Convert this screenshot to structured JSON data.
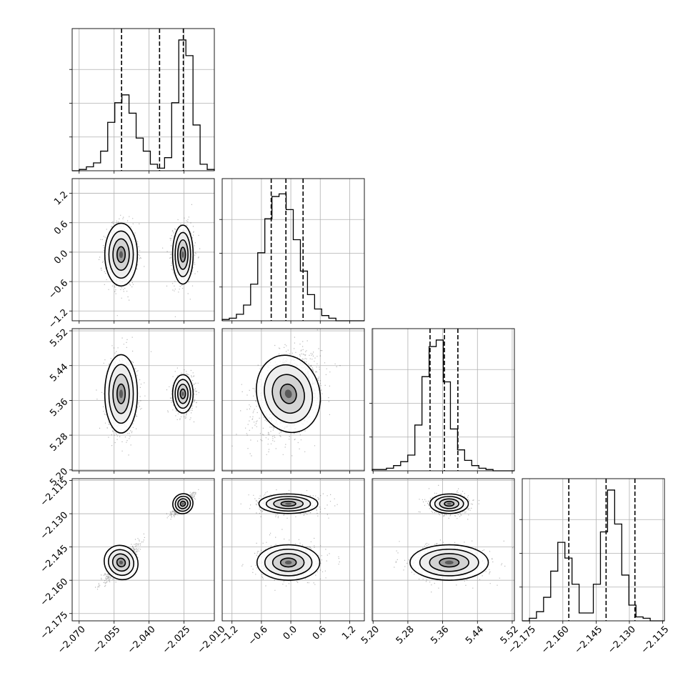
{
  "chart_data": {
    "type": "corner",
    "parameters": [
      {
        "range": [
          -2.073,
          -2.012
        ],
        "ticks": [
          -2.07,
          -2.055,
          -2.04,
          -2.025,
          -2.01
        ],
        "tick_labels": [
          "−2.070",
          "−2.055",
          "−2.040",
          "−2.025",
          "−2.010"
        ],
        "quantiles": [
          -2.0518,
          -2.0355,
          -2.0253
        ]
      },
      {
        "range": [
          -1.4,
          1.5
        ],
        "ticks": [
          -1.2,
          -0.6,
          0.0,
          0.6,
          1.2
        ],
        "tick_labels": [
          "−1.2",
          "−0.6",
          "0.0",
          "0.6",
          "1.2"
        ],
        "quantiles": [
          -0.4,
          -0.1,
          0.25
        ]
      },
      {
        "range": [
          5.198,
          5.525
        ],
        "ticks": [
          5.2,
          5.28,
          5.36,
          5.44,
          5.52
        ],
        "tick_labels": [
          "5.20",
          "5.28",
          "5.36",
          "5.44",
          "5.52"
        ],
        "quantiles": [
          5.331,
          5.364,
          5.395
        ]
      },
      {
        "range": [
          -2.1783,
          -2.1142
        ],
        "ticks": [
          -2.175,
          -2.16,
          -2.145,
          -2.13,
          -2.115
        ],
        "tick_labels": [
          "−2.175",
          "−2.160",
          "−2.145",
          "−2.130",
          "−2.115"
        ],
        "quantiles": [
          -2.1573,
          -2.1405,
          -2.1275
        ]
      }
    ],
    "histograms": [
      [
        0.0,
        0.01,
        0.03,
        0.06,
        0.15,
        0.37,
        0.52,
        0.58,
        0.44,
        0.25,
        0.15,
        0.05,
        0.02,
        0.1,
        0.52,
        1.0,
        0.88,
        0.35,
        0.05,
        0.01
      ],
      [
        0.01,
        0.02,
        0.05,
        0.12,
        0.28,
        0.52,
        0.78,
        0.95,
        0.97,
        0.85,
        0.62,
        0.38,
        0.2,
        0.09,
        0.04,
        0.02,
        0.0,
        0.0,
        0.0,
        0.0
      ],
      [
        0.01,
        0.01,
        0.02,
        0.04,
        0.07,
        0.12,
        0.35,
        0.72,
        0.95,
        1.0,
        0.68,
        0.32,
        0.16,
        0.08,
        0.04,
        0.02,
        0.01,
        0.0,
        0.0,
        0.0
      ],
      [
        0.0,
        0.02,
        0.07,
        0.18,
        0.38,
        0.6,
        0.48,
        0.28,
        0.06,
        0.06,
        0.28,
        0.68,
        1.0,
        0.74,
        0.35,
        0.12,
        0.03,
        0.02,
        0.0,
        0.0
      ]
    ],
    "modes": [
      {
        "p0": -2.052,
        "p1": -0.05,
        "p2": 5.375,
        "p3": -2.152,
        "s0": 0.0035,
        "s1": 0.32,
        "s2": 0.045,
        "s3": 0.004
      },
      {
        "p0": -2.0255,
        "p1": -0.05,
        "p2": 5.375,
        "p3": -2.1255,
        "s0": 0.0022,
        "s1": 0.3,
        "s2": 0.022,
        "s3": 0.0022
      }
    ],
    "correlations": {
      "p0_p3": 0.9,
      "p1_p2": 0.35
    },
    "samples_per_panel": 1400
  }
}
